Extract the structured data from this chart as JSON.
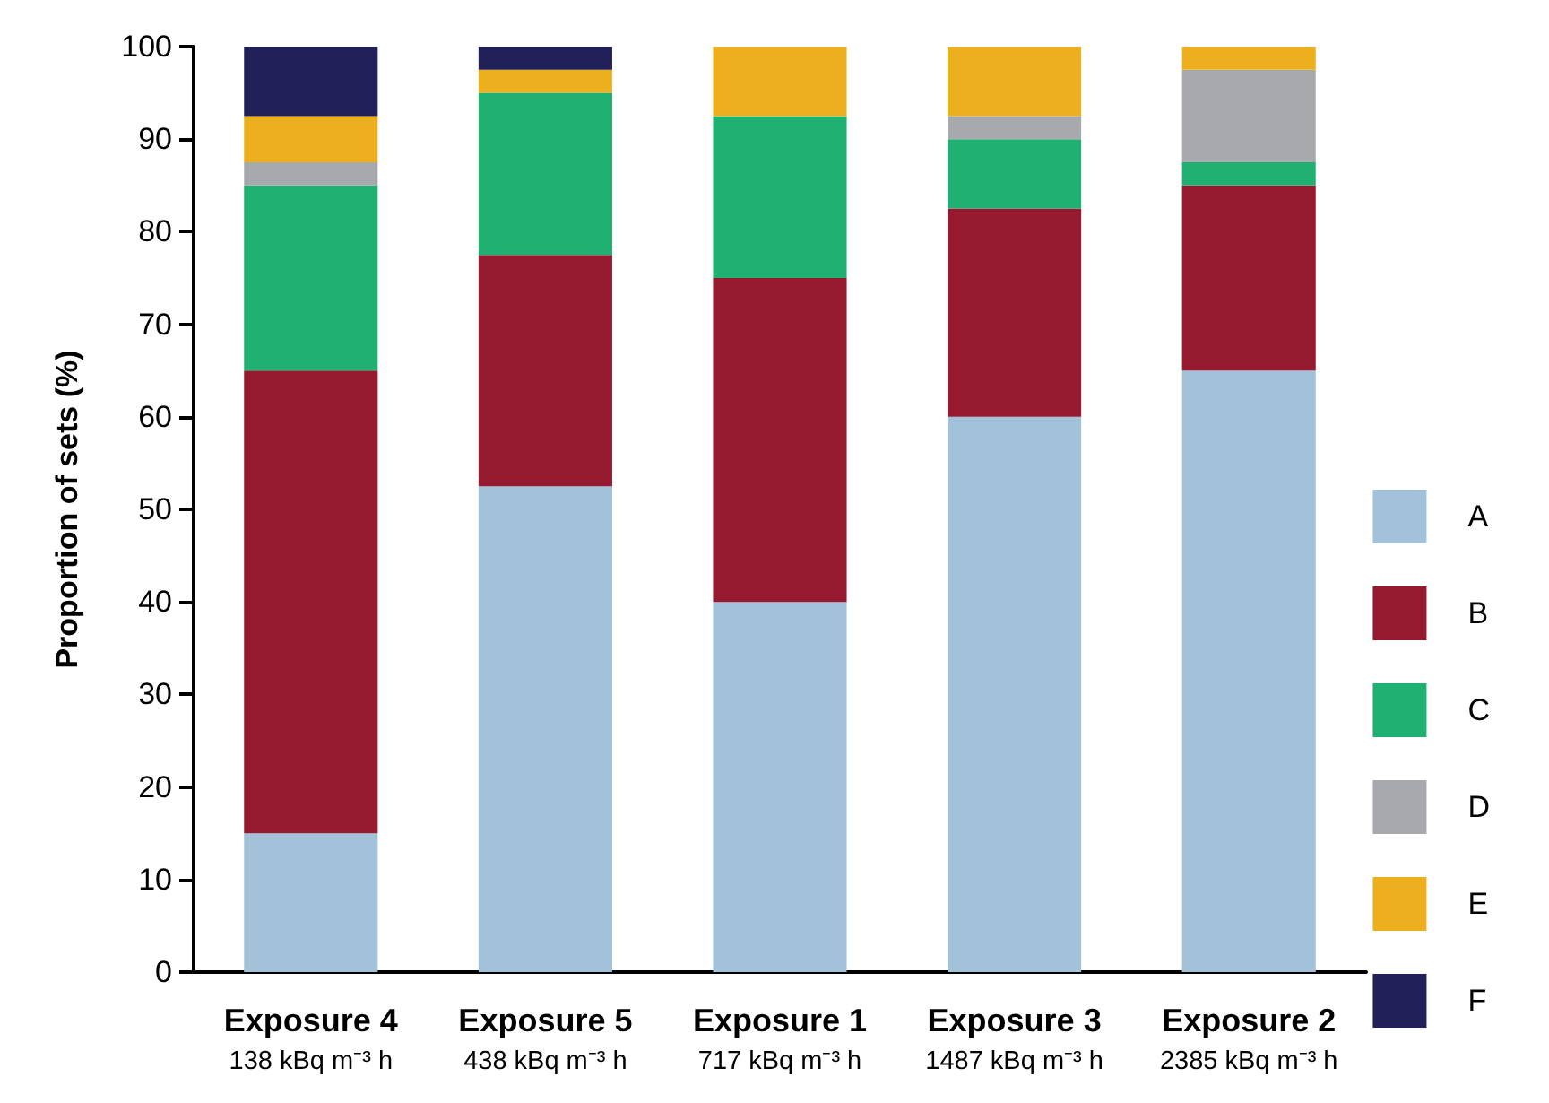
{
  "chart_data": {
    "type": "bar",
    "stacked": true,
    "ylabel": "Proportion of sets (%)",
    "categories": [
      "Exposure 4\n138 kBq m⁻³ h",
      "Exposure 5\n438 kBq m⁻³ h",
      "Exposure 1\n717 kBq m⁻³ h",
      "Exposure 3\n1487 kBq m⁻³ h",
      "Exposure 2\n2385 kBq m⁻³ h"
    ],
    "series": [
      {
        "name": "A",
        "color": "#a1c2d8",
        "values": [
          15,
          52.5,
          40,
          60,
          65
        ]
      },
      {
        "name": "B",
        "color": "#951a30",
        "values": [
          50,
          25,
          35,
          22.5,
          20
        ]
      },
      {
        "name": "C",
        "color": "#20b072",
        "values": [
          20,
          17.5,
          17.5,
          7.5,
          2.5
        ]
      },
      {
        "name": "D",
        "color": "#a8a9ad",
        "values": [
          2.5,
          0,
          0,
          2.5,
          10
        ]
      },
      {
        "name": "E",
        "color": "#ecb01f",
        "values": [
          5,
          2.5,
          7.5,
          7.5,
          2.5
        ]
      },
      {
        "name": "F",
        "color": "#212058",
        "values": [
          7.5,
          2.5,
          0,
          0,
          0
        ]
      }
    ],
    "ylim": [
      0,
      100
    ],
    "yticks": [
      0,
      10,
      20,
      30,
      40,
      50,
      60,
      70,
      80,
      90,
      100
    ],
    "grid": false,
    "legend": "right"
  }
}
